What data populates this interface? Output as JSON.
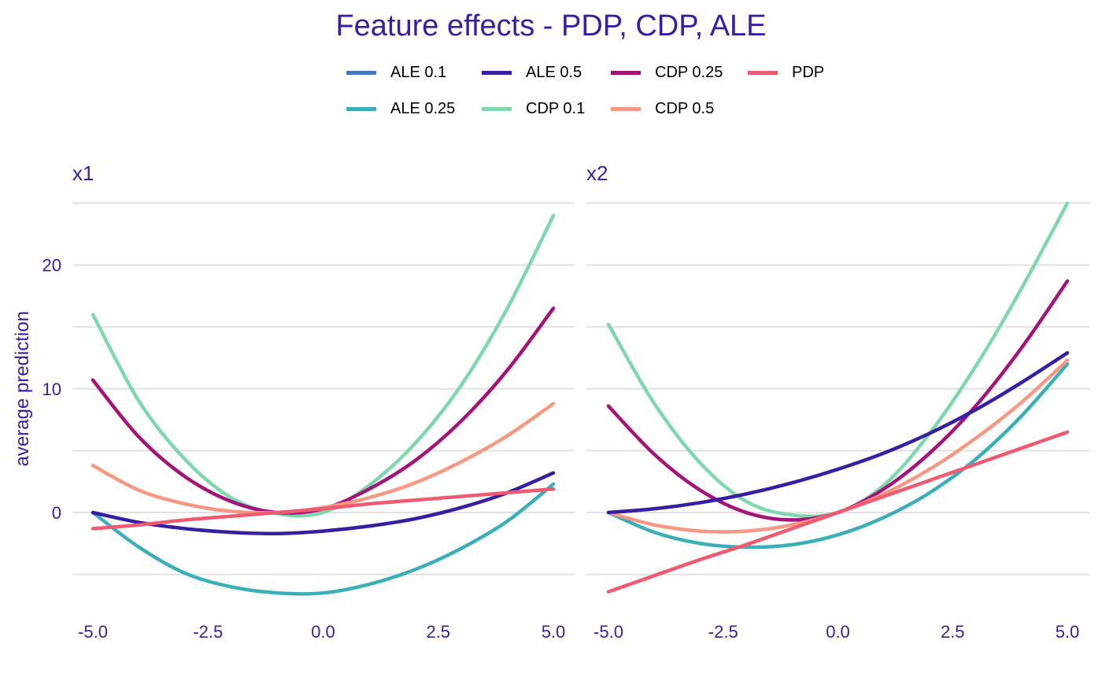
{
  "chart_data": {
    "type": "line",
    "title": "Feature effects - PDP, CDP, ALE",
    "ylabel": "average prediction",
    "ylim": [
      -9,
      26
    ],
    "yticks": [
      0,
      10,
      20
    ],
    "yticks_labels": [
      "0",
      "10",
      "20"
    ],
    "xlim": [
      -5.0,
      5.0
    ],
    "xticks": [
      -5.0,
      -2.5,
      0.0,
      2.5,
      5.0
    ],
    "xticks_labels": [
      "-5.0",
      "-2.5",
      "0.0",
      "2.5",
      "5.0"
    ],
    "grid": true,
    "legend_position": "top",
    "legend": [
      {
        "name": "ALE 0.1",
        "color": "#4378bf"
      },
      {
        "name": "ALE 0.5",
        "color": "#371ea3"
      },
      {
        "name": "CDP 0.25",
        "color": "#a3137a"
      },
      {
        "name": "PDP",
        "color": "#f05a71"
      },
      {
        "name": "ALE 0.25",
        "color": "#3aafb9"
      },
      {
        "name": "CDP 0.1",
        "color": "#7fd8ad"
      },
      {
        "name": "CDP 0.5",
        "color": "#f79882"
      }
    ],
    "panels": [
      {
        "label": "x1",
        "x": [
          -5.0,
          -4.0,
          -3.0,
          -2.0,
          -1.0,
          0.0,
          1.0,
          2.0,
          3.0,
          4.0,
          5.0
        ],
        "series": [
          {
            "name": "ALE 0.25",
            "color": "#3aafb9",
            "values": [
              0.0,
              -2.8,
              -4.9,
              -6.0,
              -6.5,
              -6.5,
              -5.8,
              -4.6,
              -2.9,
              -0.7,
              2.3
            ]
          },
          {
            "name": "CDP 0.1",
            "color": "#7fd8ad",
            "values": [
              16.0,
              9.0,
              4.3,
              1.2,
              -0.1,
              0.0,
              2.2,
              5.6,
              10.3,
              16.5,
              24.0
            ]
          },
          {
            "name": "CDP 0.25",
            "color": "#a3137a",
            "values": [
              10.7,
              6.1,
              2.9,
              0.9,
              0.0,
              0.3,
              1.9,
              4.2,
              7.4,
              11.5,
              16.5
            ]
          },
          {
            "name": "CDP 0.5",
            "color": "#f79882",
            "values": [
              3.8,
              1.8,
              0.7,
              0.1,
              0.0,
              0.4,
              1.2,
              2.4,
              4.1,
              6.2,
              8.8
            ]
          },
          {
            "name": "ALE 0.5",
            "color": "#371ea3",
            "values": [
              0.0,
              -0.8,
              -1.3,
              -1.6,
              -1.7,
              -1.5,
              -1.1,
              -0.5,
              0.4,
              1.6,
              3.2
            ]
          },
          {
            "name": "PDP",
            "color": "#f05a71",
            "values": [
              -1.3,
              -1.0,
              -0.6,
              -0.3,
              0.0,
              0.3,
              0.7,
              1.0,
              1.3,
              1.6,
              1.9
            ]
          }
        ]
      },
      {
        "label": "x2",
        "x": [
          -5.0,
          -4.0,
          -3.0,
          -2.0,
          -1.0,
          0.0,
          1.0,
          2.0,
          3.0,
          4.0,
          5.0
        ],
        "series": [
          {
            "name": "ALE 0.25",
            "color": "#3aafb9",
            "values": [
              0.0,
              -1.6,
              -2.5,
              -2.8,
              -2.6,
              -1.8,
              -0.4,
              1.6,
              4.3,
              7.8,
              12.0
            ]
          },
          {
            "name": "CDP 0.1",
            "color": "#7fd8ad",
            "values": [
              15.2,
              8.8,
              4.0,
              0.9,
              -0.2,
              0.0,
              2.2,
              6.4,
              11.8,
              18.1,
              25.0
            ]
          },
          {
            "name": "CDP 0.25",
            "color": "#a3137a",
            "values": [
              8.6,
              4.7,
              1.8,
              0.0,
              -0.6,
              0.0,
              1.9,
              4.8,
              8.6,
              13.3,
              18.7
            ]
          },
          {
            "name": "CDP 0.5",
            "color": "#f79882",
            "values": [
              0.0,
              -1.0,
              -1.5,
              -1.5,
              -1.0,
              0.0,
              1.5,
              3.5,
              6.0,
              8.9,
              12.3
            ]
          },
          {
            "name": "ALE 0.5",
            "color": "#371ea3",
            "values": [
              0.0,
              0.3,
              0.8,
              1.5,
              2.4,
              3.5,
              4.8,
              6.4,
              8.3,
              10.5,
              12.9
            ]
          },
          {
            "name": "PDP",
            "color": "#f05a71",
            "values": [
              -6.4,
              -5.1,
              -3.8,
              -2.6,
              -1.3,
              0.0,
              1.3,
              2.6,
              3.9,
              5.2,
              6.5
            ]
          }
        ]
      }
    ]
  }
}
